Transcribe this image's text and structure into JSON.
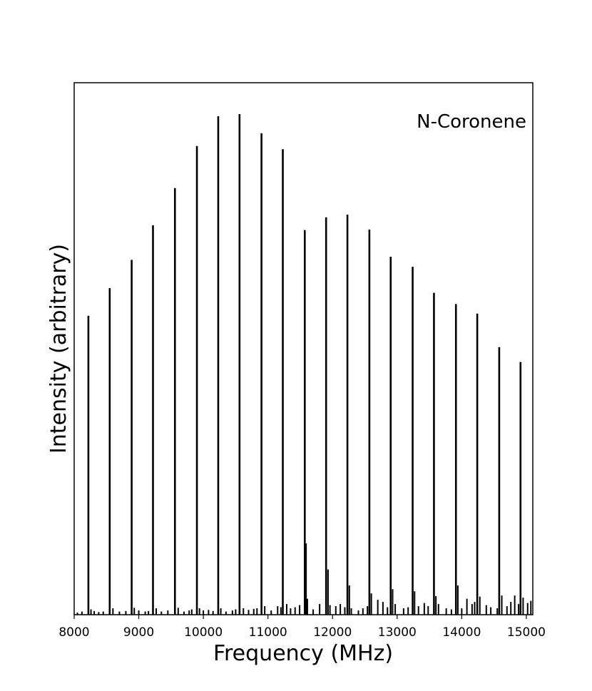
{
  "chart_data": {
    "type": "bar",
    "title": "",
    "xlabel": "Frequency (MHz)",
    "ylabel": "Intensity (arbitrary)",
    "annotation": "N-Coronene",
    "xlim": [
      8000,
      15100
    ],
    "ylim": [
      0,
      1.0
    ],
    "x_ticks": [
      8000,
      9000,
      10000,
      11000,
      12000,
      13000,
      14000,
      15000
    ],
    "y_ticks_shown": false,
    "grid": false,
    "legend": "none",
    "line_color": "#000000",
    "series": [
      {
        "points": [
          {
            "x": 8220,
            "y": 0.562
          },
          {
            "x": 8550,
            "y": 0.614
          },
          {
            "x": 8890,
            "y": 0.667
          },
          {
            "x": 9220,
            "y": 0.732
          },
          {
            "x": 9560,
            "y": 0.802
          },
          {
            "x": 9900,
            "y": 0.881
          },
          {
            "x": 10230,
            "y": 0.937
          },
          {
            "x": 10560,
            "y": 0.941
          },
          {
            "x": 10900,
            "y": 0.905
          },
          {
            "x": 11230,
            "y": 0.875
          },
          {
            "x": 11570,
            "y": 0.723
          },
          {
            "x": 11900,
            "y": 0.747
          },
          {
            "x": 12230,
            "y": 0.752
          },
          {
            "x": 12570,
            "y": 0.724
          },
          {
            "x": 12900,
            "y": 0.673
          },
          {
            "x": 13240,
            "y": 0.654
          },
          {
            "x": 13570,
            "y": 0.605
          },
          {
            "x": 13910,
            "y": 0.584
          },
          {
            "x": 14240,
            "y": 0.566
          },
          {
            "x": 14580,
            "y": 0.503
          },
          {
            "x": 14910,
            "y": 0.475
          }
        ]
      },
      {
        "points": [
          {
            "x": 8050,
            "y": 0.004
          },
          {
            "x": 8120,
            "y": 0.006
          },
          {
            "x": 8260,
            "y": 0.01
          },
          {
            "x": 8310,
            "y": 0.007
          },
          {
            "x": 8380,
            "y": 0.005
          },
          {
            "x": 8450,
            "y": 0.006
          },
          {
            "x": 8600,
            "y": 0.012
          },
          {
            "x": 8700,
            "y": 0.006
          },
          {
            "x": 8800,
            "y": 0.007
          },
          {
            "x": 8930,
            "y": 0.013
          },
          {
            "x": 9000,
            "y": 0.008
          },
          {
            "x": 9100,
            "y": 0.006
          },
          {
            "x": 9150,
            "y": 0.007
          },
          {
            "x": 9270,
            "y": 0.012
          },
          {
            "x": 9350,
            "y": 0.006
          },
          {
            "x": 9450,
            "y": 0.008
          },
          {
            "x": 9610,
            "y": 0.013
          },
          {
            "x": 9700,
            "y": 0.006
          },
          {
            "x": 9780,
            "y": 0.008
          },
          {
            "x": 9820,
            "y": 0.01
          },
          {
            "x": 9940,
            "y": 0.012
          },
          {
            "x": 10000,
            "y": 0.008
          },
          {
            "x": 10080,
            "y": 0.009
          },
          {
            "x": 10150,
            "y": 0.007
          },
          {
            "x": 10270,
            "y": 0.012
          },
          {
            "x": 10350,
            "y": 0.006
          },
          {
            "x": 10450,
            "y": 0.008
          },
          {
            "x": 10500,
            "y": 0.01
          },
          {
            "x": 10620,
            "y": 0.012
          },
          {
            "x": 10700,
            "y": 0.009
          },
          {
            "x": 10780,
            "y": 0.011
          },
          {
            "x": 10830,
            "y": 0.012
          },
          {
            "x": 10950,
            "y": 0.016
          },
          {
            "x": 11050,
            "y": 0.008
          },
          {
            "x": 11150,
            "y": 0.016
          },
          {
            "x": 11200,
            "y": 0.014
          },
          {
            "x": 11290,
            "y": 0.02
          },
          {
            "x": 11350,
            "y": 0.012
          },
          {
            "x": 11420,
            "y": 0.014
          },
          {
            "x": 11490,
            "y": 0.018
          },
          {
            "x": 11590,
            "y": 0.134
          },
          {
            "x": 11610,
            "y": 0.03
          },
          {
            "x": 11700,
            "y": 0.01
          },
          {
            "x": 11800,
            "y": 0.02
          },
          {
            "x": 11930,
            "y": 0.085
          },
          {
            "x": 11960,
            "y": 0.018
          },
          {
            "x": 12050,
            "y": 0.016
          },
          {
            "x": 12120,
            "y": 0.02
          },
          {
            "x": 12190,
            "y": 0.014
          },
          {
            "x": 12260,
            "y": 0.055
          },
          {
            "x": 12290,
            "y": 0.012
          },
          {
            "x": 12400,
            "y": 0.008
          },
          {
            "x": 12470,
            "y": 0.012
          },
          {
            "x": 12540,
            "y": 0.016
          },
          {
            "x": 12600,
            "y": 0.04
          },
          {
            "x": 12700,
            "y": 0.028
          },
          {
            "x": 12780,
            "y": 0.024
          },
          {
            "x": 12850,
            "y": 0.014
          },
          {
            "x": 12930,
            "y": 0.048
          },
          {
            "x": 12970,
            "y": 0.02
          },
          {
            "x": 13100,
            "y": 0.012
          },
          {
            "x": 13170,
            "y": 0.014
          },
          {
            "x": 13270,
            "y": 0.044
          },
          {
            "x": 13330,
            "y": 0.016
          },
          {
            "x": 13420,
            "y": 0.022
          },
          {
            "x": 13480,
            "y": 0.016
          },
          {
            "x": 13600,
            "y": 0.035
          },
          {
            "x": 13640,
            "y": 0.02
          },
          {
            "x": 13760,
            "y": 0.012
          },
          {
            "x": 13840,
            "y": 0.01
          },
          {
            "x": 13940,
            "y": 0.055
          },
          {
            "x": 14000,
            "y": 0.012
          },
          {
            "x": 14080,
            "y": 0.03
          },
          {
            "x": 14160,
            "y": 0.02
          },
          {
            "x": 14200,
            "y": 0.024
          },
          {
            "x": 14280,
            "y": 0.034
          },
          {
            "x": 14380,
            "y": 0.018
          },
          {
            "x": 14450,
            "y": 0.014
          },
          {
            "x": 14550,
            "y": 0.012
          },
          {
            "x": 14620,
            "y": 0.036
          },
          {
            "x": 14700,
            "y": 0.016
          },
          {
            "x": 14760,
            "y": 0.024
          },
          {
            "x": 14820,
            "y": 0.036
          },
          {
            "x": 14880,
            "y": 0.02
          },
          {
            "x": 14950,
            "y": 0.032
          },
          {
            "x": 15020,
            "y": 0.022
          },
          {
            "x": 15070,
            "y": 0.026
          }
        ]
      }
    ]
  }
}
